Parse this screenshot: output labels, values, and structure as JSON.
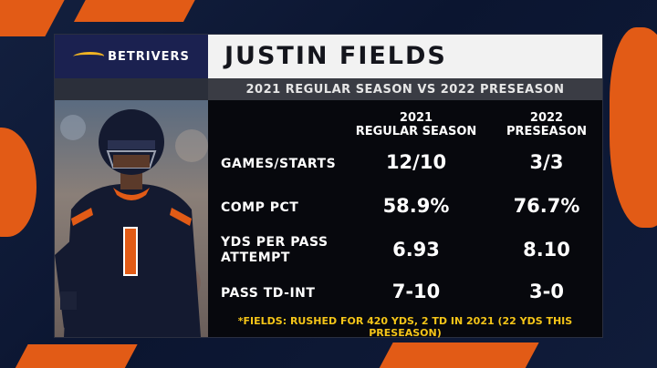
{
  "sponsor": {
    "logo_text": "BETRIVERS"
  },
  "card": {
    "title": "JUSTIN FIELDS",
    "subtitle": "2021 REGULAR SEASON VS 2022 PRESEASON"
  },
  "columns": [
    {
      "line1": "2021",
      "line2": "REGULAR SEASON"
    },
    {
      "line1": "2022",
      "line2": "PRESEASON"
    }
  ],
  "rows": [
    {
      "label1": "GAMES/STARTS",
      "label2": "",
      "v2021": "12/10",
      "v2022": "3/3"
    },
    {
      "label1": "COMP PCT",
      "label2": "",
      "v2021": "58.9%",
      "v2022": "76.7%"
    },
    {
      "label1": "YDS PER PASS",
      "label2": "ATTEMPT",
      "v2021": "6.93",
      "v2022": "8.10"
    },
    {
      "label1": "PASS TD-INT",
      "label2": "",
      "v2021": "7-10",
      "v2022": "3-0"
    }
  ],
  "footnote": "*FIELDS: RUSHED FOR 420 YDS, 2 TD IN 2021 (22 YDS THIS PRESEASON)",
  "player": {
    "jersey_number": "1"
  },
  "colors": {
    "orange": "#e25b16",
    "navy": "#0b1530",
    "gold": "#f5c518"
  }
}
